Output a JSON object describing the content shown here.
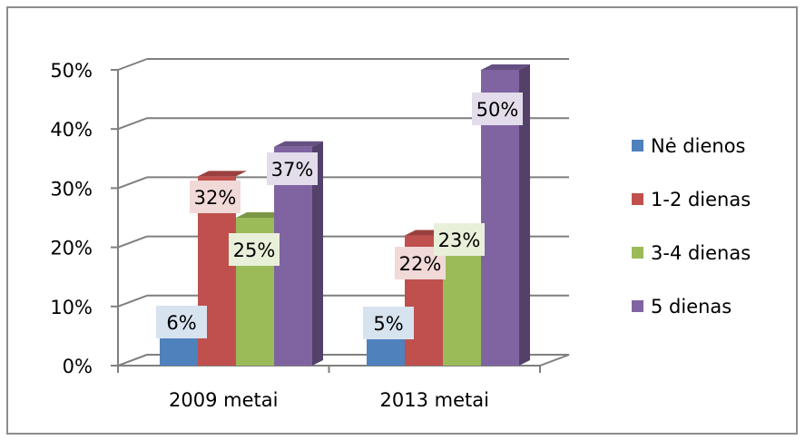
{
  "chart_data": {
    "type": "bar",
    "title": "",
    "xlabel": "",
    "ylabel": "",
    "categories": [
      "2009 metai",
      "2013 metai"
    ],
    "ylim": [
      0,
      50
    ],
    "yticks": [
      "0%",
      "10%",
      "20%",
      "30%",
      "40%",
      "50%"
    ],
    "grid": true,
    "legend_position": "right",
    "series": [
      {
        "name": "Nė dienos",
        "values": [
          6,
          5
        ],
        "labels": [
          "6%",
          "5%"
        ],
        "color": "#4f81bd"
      },
      {
        "name": "1-2 dienas",
        "values": [
          32,
          22
        ],
        "labels": [
          "32%",
          "22%"
        ],
        "color": "#c0504d"
      },
      {
        "name": "3-4 dienas",
        "values": [
          25,
          23
        ],
        "labels": [
          "25%",
          "23%"
        ],
        "color": "#9bbb59"
      },
      {
        "name": "5 dienas",
        "values": [
          37,
          50
        ],
        "labels": [
          "37%",
          "50%"
        ],
        "color": "#8064a2"
      }
    ]
  }
}
